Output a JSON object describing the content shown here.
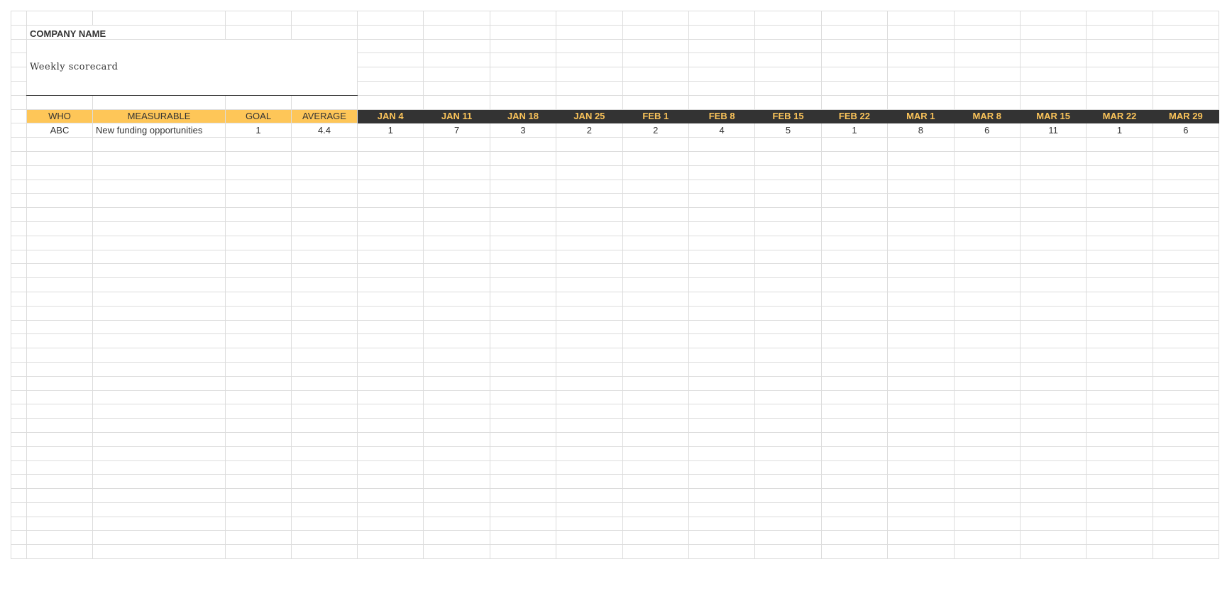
{
  "sheet": {
    "company_name": "COMPANY NAME",
    "title": "Weekly scorecard",
    "colors": {
      "header_yellow": "#fec658",
      "header_dark": "#333333",
      "header_dark_text": "#fbc45a"
    },
    "headers": {
      "who": "WHO",
      "measurable": "MEASURABLE",
      "goal": "GOAL",
      "average": "AVERAGE",
      "weeks": [
        "JAN 4",
        "JAN 11",
        "JAN 18",
        "JAN 25",
        "FEB 1",
        "FEB 8",
        "FEB 15",
        "FEB 22",
        "MAR 1",
        "MAR 8",
        "MAR 15",
        "MAR 22",
        "MAR 29"
      ]
    },
    "rows": [
      {
        "who": "ABC",
        "measurable": "New funding opportunities",
        "goal": "1",
        "average": "4.4",
        "weeks": [
          "1",
          "7",
          "3",
          "2",
          "2",
          "4",
          "5",
          "1",
          "8",
          "6",
          "11",
          "1",
          "6"
        ]
      }
    ]
  }
}
